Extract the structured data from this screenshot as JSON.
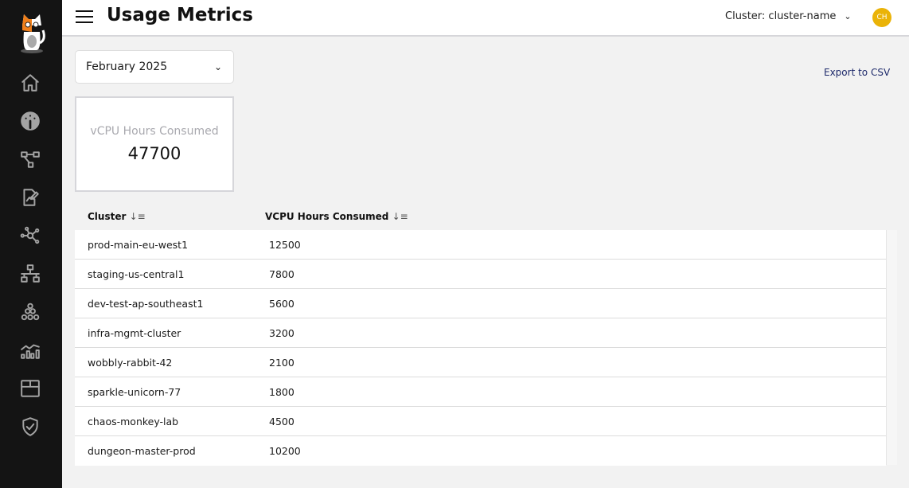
{
  "header": {
    "title": "Usage Metrics",
    "cluster_selector": "Cluster: cluster-name",
    "avatar_initials": "CH"
  },
  "sidebar": {
    "items": [
      {
        "icon": "home-icon"
      },
      {
        "icon": "dashboard-gauge-icon"
      },
      {
        "icon": "workflow-icon"
      },
      {
        "icon": "report-edit-icon"
      },
      {
        "icon": "network-icon"
      },
      {
        "icon": "hierarchy-icon"
      },
      {
        "icon": "cluster-group-icon"
      },
      {
        "icon": "analytics-icon"
      },
      {
        "icon": "package-icon"
      },
      {
        "icon": "shield-check-icon"
      }
    ]
  },
  "filters": {
    "month": "February 2025",
    "export_label": "Export to CSV"
  },
  "summary": {
    "label": "vCPU Hours Consumed",
    "value": "47700"
  },
  "table": {
    "columns": [
      "Cluster",
      "VCPU Hours Consumed"
    ],
    "rows": [
      [
        "prod-main-eu-west1",
        "12500"
      ],
      [
        "staging-us-central1",
        "7800"
      ],
      [
        "dev-test-ap-southeast1",
        "5600"
      ],
      [
        "infra-mgmt-cluster",
        "3200"
      ],
      [
        "wobbly-rabbit-42",
        "2100"
      ],
      [
        "sparkle-unicorn-77",
        "1800"
      ],
      [
        "chaos-monkey-lab",
        "4500"
      ],
      [
        "dungeon-master-prod",
        "10200"
      ]
    ]
  },
  "colors": {
    "sidebar": "#141414",
    "avatar": "#eab308",
    "link": "#1e2a6b"
  }
}
